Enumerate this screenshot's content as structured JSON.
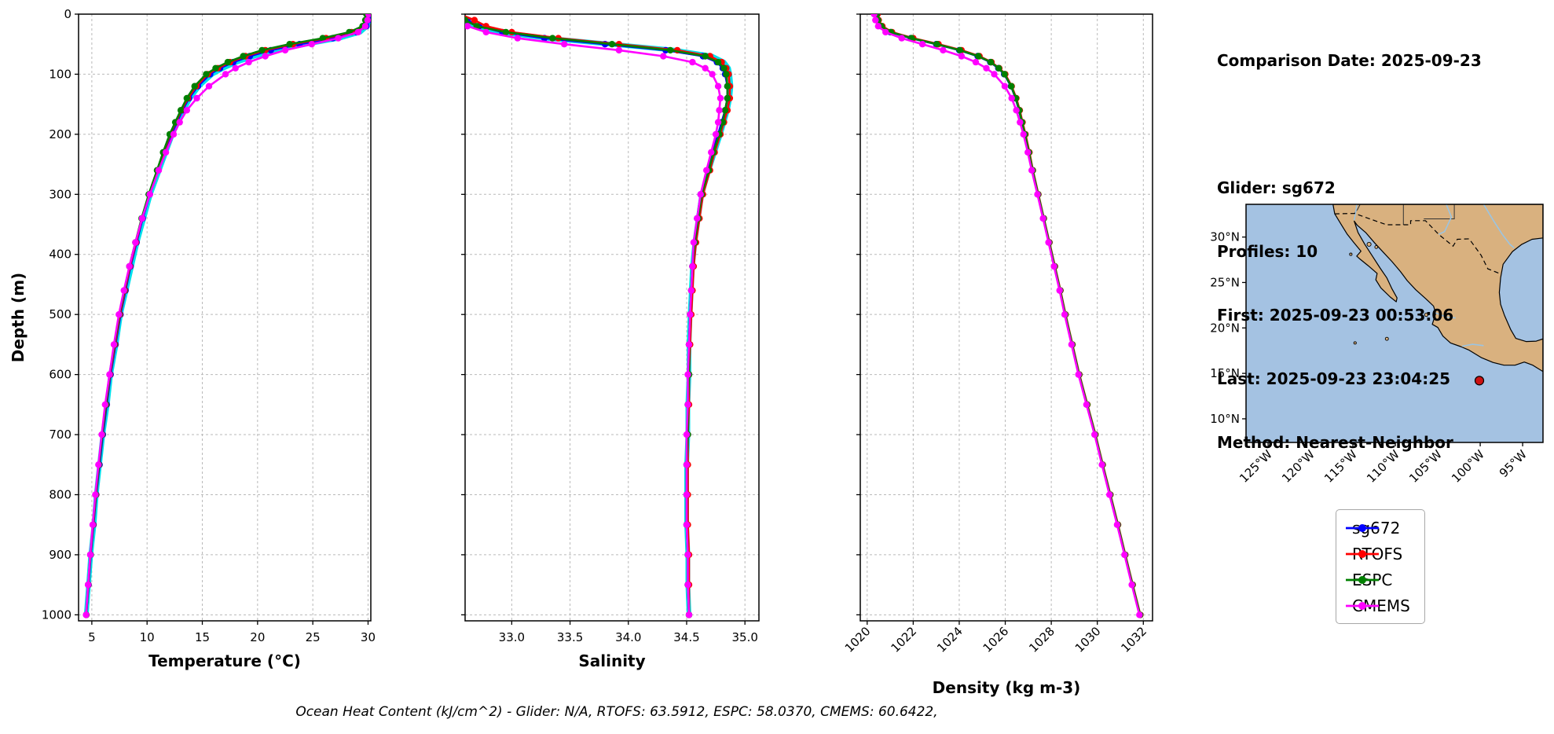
{
  "info_panel": {
    "comparison_date": "Comparison Date: 2025-09-23",
    "glider": "Glider: sg672",
    "profiles": "Profiles: 10",
    "first": "First: 2025-09-23 00:53:06",
    "last": "Last: 2025-09-23 23:04:25",
    "method": "Method: Nearest-Neighbor"
  },
  "footer_note": "Ocean Heat Content (kJ/cm^2) - Glider: N/A,  RTOFS: 63.5912,  ESPC: 58.0370,  CMEMS: 60.6422,",
  "legend": {
    "entries": [
      {
        "label": "sg672",
        "color": "#0000ff"
      },
      {
        "label": "RTOFS",
        "color": "#ff0000"
      },
      {
        "label": "ESPC",
        "color": "#008000"
      },
      {
        "label": "CMEMS",
        "color": "#ff00ff"
      }
    ]
  },
  "chart_data": {
    "type": "line",
    "ylabel": "Depth (m)",
    "ylim": [
      0,
      1010
    ],
    "yticks": [
      0,
      100,
      200,
      300,
      400,
      500,
      600,
      700,
      800,
      900,
      1000
    ],
    "ytick_labels": [
      "0",
      "100",
      "200",
      "300",
      "400",
      "500",
      "600",
      "700",
      "800",
      "900",
      "1000"
    ],
    "depths": [
      0,
      10,
      20,
      30,
      40,
      50,
      60,
      70,
      80,
      90,
      100,
      120,
      140,
      160,
      180,
      200,
      230,
      260,
      300,
      340,
      380,
      420,
      460,
      500,
      550,
      600,
      650,
      700,
      750,
      800,
      850,
      900,
      950,
      1000
    ],
    "charts": [
      {
        "name": "temperature",
        "xlabel": "Temperature (°C)",
        "xlim": [
          3.8,
          30.25
        ],
        "xticks": [
          5,
          10,
          15,
          20,
          25,
          30
        ],
        "xtick_labels": [
          "5",
          "10",
          "15",
          "20",
          "25",
          "30"
        ],
        "rotate_xticks": false,
        "series": [
          {
            "name": "sg672-raw",
            "color": "#00e0ea",
            "lw": 6,
            "markers": false,
            "values": [
              30.2,
              30.1,
              29.9,
              29.3,
              27.4,
              24.4,
              21.7,
              19.7,
              18.1,
              16.9,
              15.9,
              14.7,
              13.9,
              13.3,
              12.8,
              12.3,
              11.7,
              11.1,
              10.3,
              9.7,
              9.1,
              8.6,
              8.1,
              7.6,
              7.2,
              6.7,
              6.4,
              6.0,
              5.7,
              5.4,
              5.2,
              4.9,
              4.7,
              4.5
            ]
          },
          {
            "name": "sg672",
            "color": "#0000ff",
            "lw": 2.6,
            "markers": true,
            "values": [
              30.15,
              30.05,
              29.85,
              29.0,
              26.8,
              23.8,
              21.2,
              19.3,
              17.8,
              16.6,
              15.7,
              14.6,
              13.8,
              13.2,
              12.7,
              12.2,
              11.6,
              11.0,
              10.25,
              9.6,
              9.05,
              8.5,
              8.05,
              7.6,
              7.15,
              6.7,
              6.35,
              6.0,
              5.7,
              5.4,
              5.15,
              4.9,
              4.7,
              4.5
            ]
          },
          {
            "name": "RTOFS",
            "color": "#ff0000",
            "lw": 2.6,
            "markers": true,
            "values": [
              30.0,
              29.9,
              29.6,
              28.5,
              26.2,
              23.2,
              20.7,
              18.9,
              17.5,
              16.4,
              15.5,
              14.45,
              13.7,
              13.1,
              12.6,
              12.1,
              11.5,
              10.95,
              10.2,
              9.55,
              9.0,
              8.45,
              8.0,
              7.55,
              7.1,
              6.65,
              6.3,
              5.95,
              5.65,
              5.38,
              5.12,
              4.88,
              4.68,
              4.5
            ]
          },
          {
            "name": "ESPC",
            "color": "#008000",
            "lw": 2.6,
            "markers": true,
            "values": [
              29.85,
              29.75,
              29.5,
              28.3,
              25.9,
              22.9,
              20.4,
              18.7,
              17.3,
              16.2,
              15.35,
              14.3,
              13.6,
              13.05,
              12.55,
              12.05,
              11.45,
              10.9,
              10.15,
              9.5,
              8.95,
              8.4,
              7.95,
              7.5,
              7.05,
              6.62,
              6.28,
              5.95,
              5.65,
              5.36,
              5.1,
              4.87,
              4.67,
              4.5
            ]
          },
          {
            "name": "CMEMS",
            "color": "#ff00ff",
            "lw": 2.6,
            "markers": true,
            "values": [
              30.05,
              29.95,
              29.75,
              29.1,
              27.3,
              24.9,
              22.5,
              20.7,
              19.2,
              18.0,
              17.1,
              15.6,
              14.5,
              13.6,
              12.95,
              12.4,
              11.7,
              11.05,
              10.25,
              9.55,
              8.95,
              8.4,
              7.9,
              7.45,
              7.0,
              6.6,
              6.2,
              5.9,
              5.6,
              5.32,
              5.08,
              4.86,
              4.66,
              4.48
            ]
          }
        ]
      },
      {
        "name": "salinity",
        "xlabel": "Salinity",
        "xlim": [
          32.6,
          35.12
        ],
        "xticks": [
          33.0,
          33.5,
          34.0,
          34.5,
          35.0
        ],
        "xtick_labels": [
          "33.0",
          "33.5",
          "34.0",
          "34.5",
          "35.0"
        ],
        "rotate_xticks": false,
        "series": [
          {
            "name": "sg672-raw",
            "color": "#00e0ea",
            "lw": 6,
            "markers": false,
            "values": [
              32.45,
              32.55,
              32.68,
              32.9,
              33.3,
              33.85,
              34.4,
              34.72,
              34.82,
              34.86,
              34.87,
              34.88,
              34.87,
              34.85,
              34.82,
              34.79,
              34.74,
              34.69,
              34.63,
              34.6,
              34.57,
              34.55,
              34.54,
              34.53,
              34.52,
              34.52,
              34.51,
              34.51,
              34.5,
              34.5,
              34.5,
              34.51,
              34.51,
              34.52
            ]
          },
          {
            "name": "sg672",
            "color": "#0000ff",
            "lw": 2.6,
            "markers": true,
            "values": [
              32.5,
              32.62,
              32.72,
              32.92,
              33.28,
              33.8,
              34.32,
              34.64,
              34.76,
              34.81,
              34.83,
              34.85,
              34.85,
              34.83,
              34.8,
              34.77,
              34.72,
              34.68,
              34.62,
              34.59,
              34.57,
              34.55,
              34.54,
              34.53,
              34.52,
              34.52,
              34.51,
              34.51,
              34.5,
              34.5,
              34.5,
              34.51,
              34.51,
              34.52
            ]
          },
          {
            "name": "RTOFS",
            "color": "#ff0000",
            "lw": 2.6,
            "markers": true,
            "values": [
              32.55,
              32.68,
              32.78,
              33.0,
              33.4,
              33.92,
              34.42,
              34.7,
              34.8,
              34.84,
              34.86,
              34.87,
              34.87,
              34.85,
              34.82,
              34.79,
              34.74,
              34.7,
              34.64,
              34.61,
              34.58,
              34.56,
              34.55,
              34.54,
              34.53,
              34.52,
              34.52,
              34.51,
              34.51,
              34.51,
              34.51,
              34.52,
              34.52,
              34.52
            ]
          },
          {
            "name": "ESPC",
            "color": "#008000",
            "lw": 2.6,
            "markers": true,
            "values": [
              32.48,
              32.6,
              32.7,
              32.95,
              33.35,
              33.86,
              34.36,
              34.66,
              34.77,
              34.82,
              34.84,
              34.85,
              34.85,
              34.83,
              34.81,
              34.78,
              34.73,
              34.69,
              34.63,
              34.6,
              34.57,
              34.55,
              34.54,
              34.53,
              34.52,
              34.52,
              34.51,
              34.51,
              34.5,
              34.5,
              34.5,
              34.51,
              34.51,
              34.52
            ]
          },
          {
            "name": "CMEMS",
            "color": "#ff00ff",
            "lw": 2.6,
            "markers": true,
            "values": [
              32.42,
              32.52,
              32.62,
              32.78,
              33.05,
              33.45,
              33.92,
              34.3,
              34.55,
              34.66,
              34.72,
              34.77,
              34.79,
              34.78,
              34.77,
              34.75,
              34.71,
              34.67,
              34.62,
              34.59,
              34.56,
              34.55,
              34.54,
              34.53,
              34.52,
              34.51,
              34.51,
              34.5,
              34.5,
              34.5,
              34.5,
              34.51,
              34.51,
              34.52
            ]
          }
        ]
      },
      {
        "name": "density",
        "xlabel": "Density (kg m-3)",
        "xlim": [
          1019.7,
          1032.4
        ],
        "xticks": [
          1020,
          1022,
          1024,
          1026,
          1028,
          1030,
          1032
        ],
        "xtick_labels": [
          "1020",
          "1022",
          "1024",
          "1026",
          "1028",
          "1030",
          "1032"
        ],
        "rotate_xticks": true,
        "series": [
          {
            "name": "sg672",
            "color": "#0000ff",
            "lw": 2.6,
            "markers": true,
            "values": [
              1020.4,
              1020.45,
              1020.6,
              1021.0,
              1021.9,
              1023.0,
              1024.0,
              1024.8,
              1025.35,
              1025.7,
              1025.95,
              1026.25,
              1026.45,
              1026.6,
              1026.72,
              1026.85,
              1027.02,
              1027.18,
              1027.42,
              1027.66,
              1027.9,
              1028.14,
              1028.38,
              1028.6,
              1028.9,
              1029.2,
              1029.55,
              1029.9,
              1030.22,
              1030.55,
              1030.88,
              1031.2,
              1031.52,
              1031.85
            ]
          },
          {
            "name": "RTOFS",
            "color": "#ff0000",
            "lw": 2.6,
            "markers": true,
            "values": [
              1020.45,
              1020.5,
              1020.66,
              1021.08,
              1022.0,
              1023.1,
              1024.1,
              1024.88,
              1025.4,
              1025.74,
              1026.0,
              1026.28,
              1026.48,
              1026.63,
              1026.75,
              1026.88,
              1027.05,
              1027.2,
              1027.44,
              1027.68,
              1027.92,
              1028.16,
              1028.4,
              1028.62,
              1028.92,
              1029.22,
              1029.57,
              1029.92,
              1030.24,
              1030.57,
              1030.9,
              1031.22,
              1031.54,
              1031.87
            ]
          },
          {
            "name": "ESPC",
            "color": "#008000",
            "lw": 2.6,
            "markers": true,
            "values": [
              1020.42,
              1020.47,
              1020.62,
              1021.03,
              1021.93,
              1023.03,
              1024.03,
              1024.83,
              1025.37,
              1025.72,
              1025.97,
              1026.26,
              1026.46,
              1026.61,
              1026.73,
              1026.86,
              1027.03,
              1027.19,
              1027.43,
              1027.67,
              1027.91,
              1028.15,
              1028.39,
              1028.61,
              1028.91,
              1029.21,
              1029.56,
              1029.91,
              1030.23,
              1030.56,
              1030.89,
              1031.21,
              1031.53,
              1031.86
            ]
          },
          {
            "name": "CMEMS",
            "color": "#ff00ff",
            "lw": 2.6,
            "markers": true,
            "values": [
              1020.3,
              1020.36,
              1020.48,
              1020.8,
              1021.5,
              1022.4,
              1023.3,
              1024.1,
              1024.72,
              1025.18,
              1025.52,
              1025.98,
              1026.28,
              1026.48,
              1026.64,
              1026.79,
              1026.98,
              1027.15,
              1027.4,
              1027.64,
              1027.88,
              1028.12,
              1028.36,
              1028.58,
              1028.88,
              1029.18,
              1029.53,
              1029.88,
              1030.2,
              1030.53,
              1030.86,
              1031.18,
              1031.5,
              1031.83
            ]
          }
        ]
      }
    ],
    "map": {
      "lon_range": [
        -127.6,
        -92.6
      ],
      "lat_range": [
        7.4,
        33.6
      ],
      "lon_ticks": [
        -125,
        -120,
        -115,
        -110,
        -105,
        -100,
        -95
      ],
      "lon_tick_labels": [
        "125°W",
        "120°W",
        "115°W",
        "110°W",
        "105°W",
        "100°W",
        "95°W"
      ],
      "lat_ticks": [
        10,
        15,
        20,
        25,
        30
      ],
      "lat_tick_labels": [
        "10°N",
        "15°N",
        "20°N",
        "25°N",
        "30°N"
      ],
      "marker": {
        "lon": -100.1,
        "lat": 14.2,
        "color": "#cc1111"
      },
      "ocean_color": "#a4c2e2",
      "land_color": "#d9b17f"
    }
  }
}
